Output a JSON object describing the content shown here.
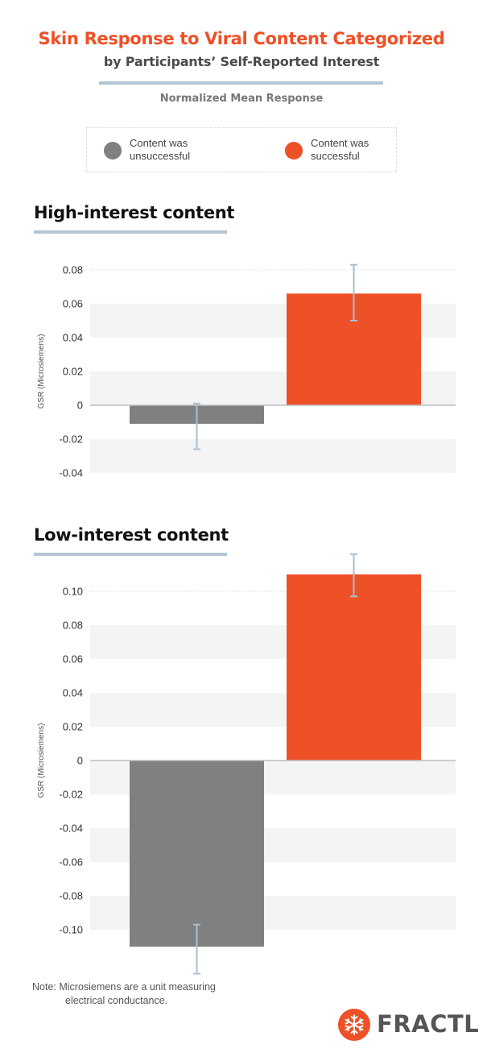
{
  "header": {
    "title_line1": "Skin Response to Viral Content Categorized",
    "title_line2": "by Participants’ Self-Reported Interest",
    "subtitle": "Normalized Mean Response"
  },
  "legend": {
    "items": [
      {
        "line1": "Content was",
        "line2": "unsuccessful",
        "color": "#808080"
      },
      {
        "line1": "Content was",
        "line2": "successful",
        "color": "#ee5027"
      }
    ]
  },
  "colors": {
    "accent": "#ee5027",
    "gray_bar": "#808080",
    "rule": "#b1c5d4",
    "error_bar": "#a9bfd0",
    "band": "#f4f4f4"
  },
  "chart_data": [
    {
      "type": "bar",
      "section_title": "High-interest content",
      "ylabel": "GSR (Microsiemens)",
      "categories": [
        "Content was unsuccessful",
        "Content was successful"
      ],
      "values": [
        -0.011,
        0.066
      ],
      "error_low": [
        -0.026,
        0.05
      ],
      "error_high": [
        0.001,
        0.083
      ],
      "ylim": [
        -0.04,
        0.08
      ],
      "yticks": [
        -0.04,
        -0.02,
        0,
        0.02,
        0.04,
        0.06,
        0.08
      ],
      "ytick_labels": [
        "-0.04",
        "-0.02",
        "0",
        "0.02",
        "0.04",
        "0.06",
        "0.08"
      ],
      "grid": "alternating bands"
    },
    {
      "type": "bar",
      "section_title": "Low-interest content",
      "ylabel": "GSR (Microsiemens)",
      "categories": [
        "Content was unsuccessful",
        "Content was successful"
      ],
      "values": [
        -0.11,
        0.11
      ],
      "error_low": [
        -0.126,
        0.097
      ],
      "error_high": [
        -0.097,
        0.122
      ],
      "ylim": [
        -0.1,
        0.1
      ],
      "yticks": [
        -0.1,
        -0.08,
        -0.06,
        -0.04,
        -0.02,
        0,
        0.02,
        0.04,
        0.06,
        0.08,
        0.1
      ],
      "ytick_labels": [
        "-0.10",
        "-0.08",
        "-0.06",
        "-0.04",
        "-0.02",
        "0",
        "0.02",
        "0.04",
        "0.06",
        "0.08",
        "0.10"
      ],
      "grid": "alternating bands"
    }
  ],
  "footer": {
    "note_line1": "Note: Microsiemens are a unit measuring",
    "note_line2": "electrical conductance.",
    "logo_text": "FRACTL",
    "logo_icon": "snowflake-icon"
  }
}
